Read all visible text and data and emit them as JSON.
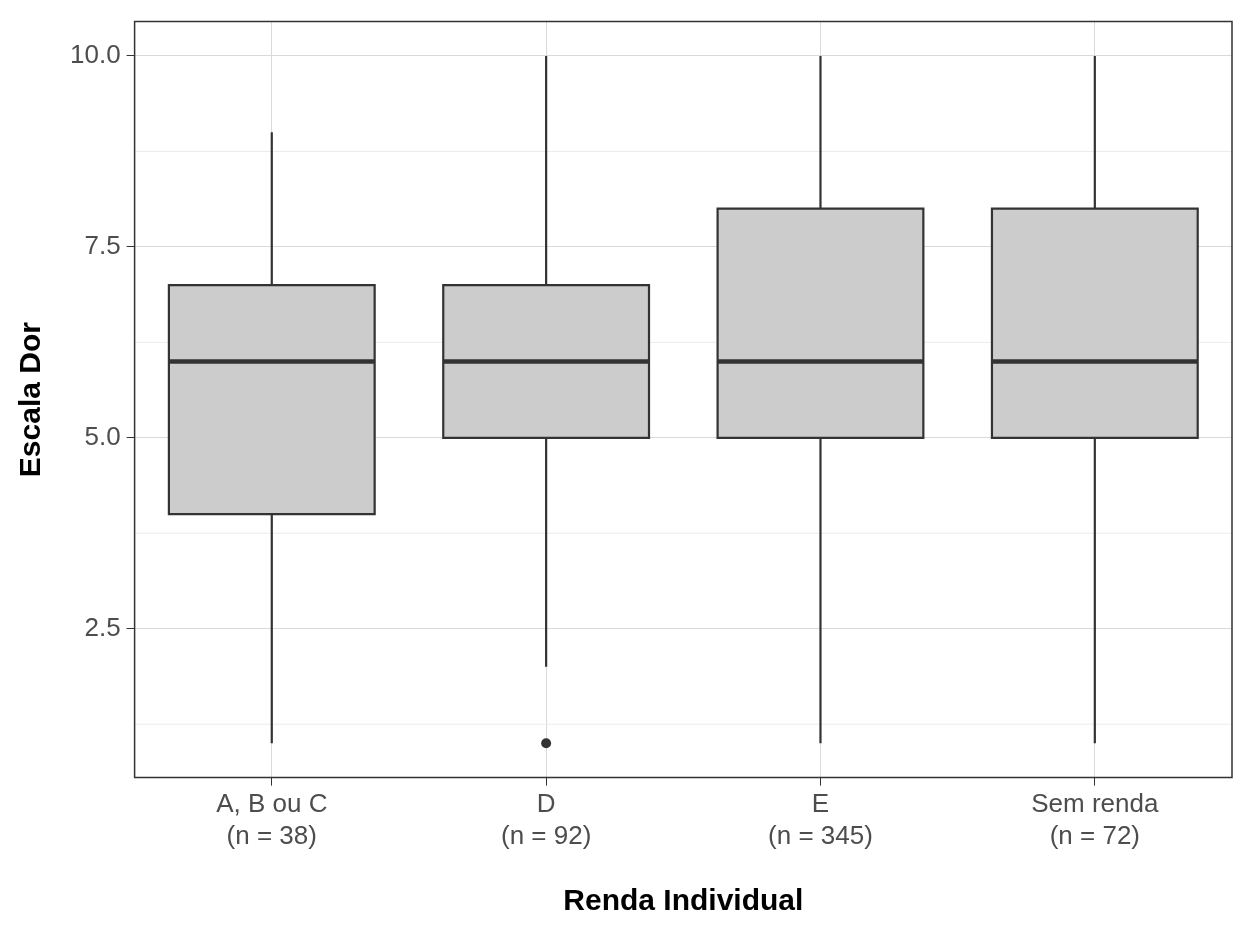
{
  "chart_data": {
    "type": "box",
    "xlabel": "Renda Individual",
    "ylabel": "Escala Dor",
    "categories": [
      "A, B ou C\n(n = 38)",
      "D\n(n = 92)",
      "E\n(n = 345)",
      "Sem renda\n(n = 72)"
    ],
    "boxes": [
      {
        "low": 1,
        "q1": 4,
        "median": 6,
        "q3": 7,
        "high": 9
      },
      {
        "low": 2,
        "q1": 5,
        "median": 6,
        "q3": 7,
        "high": 10,
        "outliers": [
          1
        ]
      },
      {
        "low": 1,
        "q1": 5,
        "median": 6,
        "q3": 8,
        "high": 10
      },
      {
        "low": 1,
        "q1": 5,
        "median": 6,
        "q3": 8,
        "high": 10
      }
    ],
    "color": "#cccccc",
    "ylim": [
      0.55,
      10.45
    ],
    "yticks": [
      {
        "value": 2.5,
        "label": "2.5"
      },
      {
        "value": 5,
        "label": "5.0"
      },
      {
        "value": 7.5,
        "label": "7.5"
      },
      {
        "value": 10,
        "label": "10.0"
      }
    ],
    "grid": true,
    "legend": false
  }
}
